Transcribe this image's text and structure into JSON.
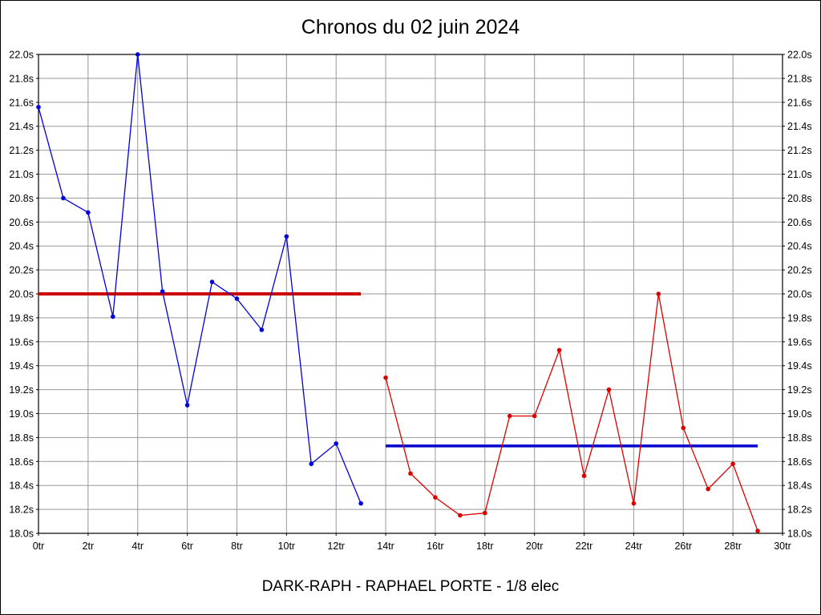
{
  "chart_data": {
    "type": "line",
    "title": "Chronos du 02 juin 2024",
    "subtitle": "DARK-RAPH - RAPHAEL PORTE - 1/8 elec",
    "xlabel": "",
    "ylabel": "",
    "x_unit": "tr",
    "y_unit": "s",
    "xlim": [
      0,
      30
    ],
    "ylim": [
      18.0,
      22.0
    ],
    "x_tick_step": 2,
    "y_tick_step": 0.2,
    "grid": true,
    "grid_color": "#999999",
    "legend": "none",
    "x_tick_labels": [
      "0tr",
      "2tr",
      "4tr",
      "6tr",
      "8tr",
      "10tr",
      "12tr",
      "14tr",
      "16tr",
      "18tr",
      "20tr",
      "22tr",
      "24tr",
      "26tr",
      "28tr",
      "30tr"
    ],
    "y_tick_labels": [
      "18.0s",
      "18.2s",
      "18.4s",
      "18.6s",
      "18.8s",
      "19.0s",
      "19.2s",
      "19.4s",
      "19.6s",
      "19.8s",
      "20.0s",
      "20.2s",
      "20.4s",
      "20.6s",
      "20.8s",
      "21.0s",
      "21.2s",
      "21.4s",
      "21.6s",
      "21.8s",
      "22.0s"
    ],
    "series": [
      {
        "name": "blue-series",
        "color": "#0000dd",
        "x": [
          0,
          1,
          2,
          3,
          4,
          5,
          6,
          7,
          8,
          9,
          10,
          11,
          12,
          13
        ],
        "values": [
          21.56,
          20.8,
          20.68,
          19.81,
          22.0,
          20.02,
          19.07,
          20.1,
          19.96,
          19.7,
          20.48,
          18.58,
          18.75,
          18.25
        ]
      },
      {
        "name": "red-series",
        "color": "#dd0000",
        "x": [
          14,
          15,
          16,
          17,
          18,
          19,
          20,
          21,
          22,
          23,
          24,
          25,
          26,
          27,
          28,
          29
        ],
        "values": [
          19.3,
          18.5,
          18.3,
          18.15,
          18.17,
          18.98,
          18.98,
          19.53,
          18.48,
          19.2,
          18.25,
          20.0,
          18.88,
          18.37,
          18.58,
          18.02
        ]
      }
    ],
    "reference_lines": [
      {
        "name": "first-half-mean-line",
        "y": 20.0,
        "x_start": 0,
        "x_end": 13,
        "color": "#cc0000",
        "width": 4
      },
      {
        "name": "second-half-mean-line",
        "y": 18.73,
        "x_start": 14,
        "x_end": 29,
        "color": "#0000cc",
        "width": 3.5
      }
    ]
  }
}
